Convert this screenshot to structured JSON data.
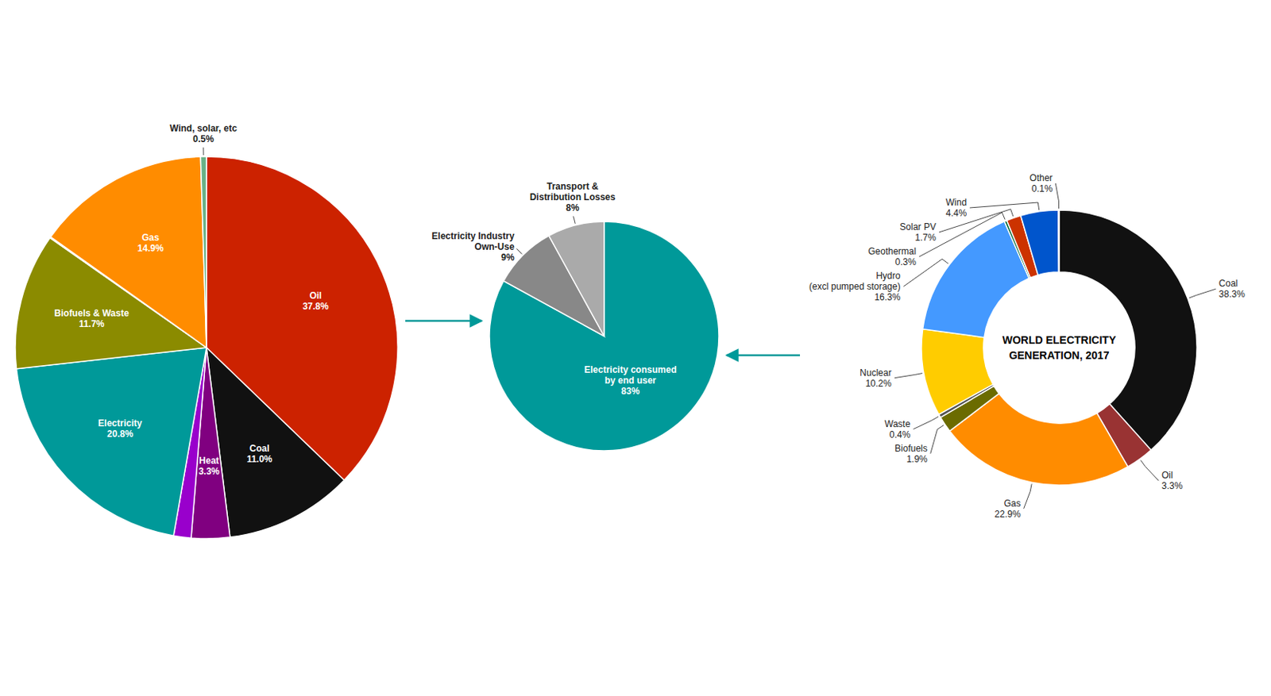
{
  "chart_data": [
    {
      "type": "pie",
      "categories": [
        "Oil",
        "Coal",
        "Heat",
        null,
        "Electricity",
        "Biofuels & Waste",
        null,
        "Gas",
        "Wind, solar, etc"
      ],
      "values": [
        37.8,
        11.0,
        3.3,
        1.5,
        20.8,
        11.7,
        0.1,
        14.9,
        0.5
      ],
      "value_labels": [
        "37.8%",
        "11.0%",
        "3.3%",
        null,
        "20.8%",
        "11.7%",
        null,
        "14.9%",
        "0.5%"
      ],
      "colors": [
        "#cc2200",
        "#111111",
        "#800080",
        "#9900cc",
        "#009999",
        "#8b8b00",
        "#cc0000",
        "#ff8c00",
        "#6ab187"
      ],
      "data_labels": true
    },
    {
      "type": "pie",
      "categories": [
        "Electricity consumed\nby end user",
        "Electricity Industry\nOwn-Use",
        "Transport &\nDistribution Losses"
      ],
      "values": [
        83,
        9,
        8
      ],
      "value_labels": [
        "83%",
        "9%",
        "8%"
      ],
      "colors": [
        "#009999",
        "#888888",
        "#aaaaaa"
      ],
      "data_labels": true
    },
    {
      "type": "donut",
      "title": "WORLD ELECTRICITY\nGENERATION, 2017",
      "categories": [
        "Coal",
        "Oil",
        "Gas",
        "Biofuels",
        "Waste",
        "Nuclear",
        "Hydro\n(excl pumped storage)",
        "Geothermal",
        "Solar PV",
        "Wind",
        "Other"
      ],
      "values": [
        38.3,
        3.3,
        22.9,
        1.9,
        0.4,
        10.2,
        16.3,
        0.3,
        1.7,
        4.4,
        0.1
      ],
      "value_labels": [
        "38.3%",
        "3.3%",
        "22.9%",
        "1.9%",
        "0.4%",
        "10.2%",
        "16.3%",
        "0.3%",
        "1.7%",
        "4.4%",
        "0.1%"
      ],
      "colors": [
        "#111111",
        "#993333",
        "#ff8c00",
        "#6b6b00",
        "#555555",
        "#ffcc00",
        "#4499ff",
        "#006633",
        "#cc3300",
        "#0055cc",
        "#3333cc"
      ],
      "data_labels": true
    }
  ]
}
